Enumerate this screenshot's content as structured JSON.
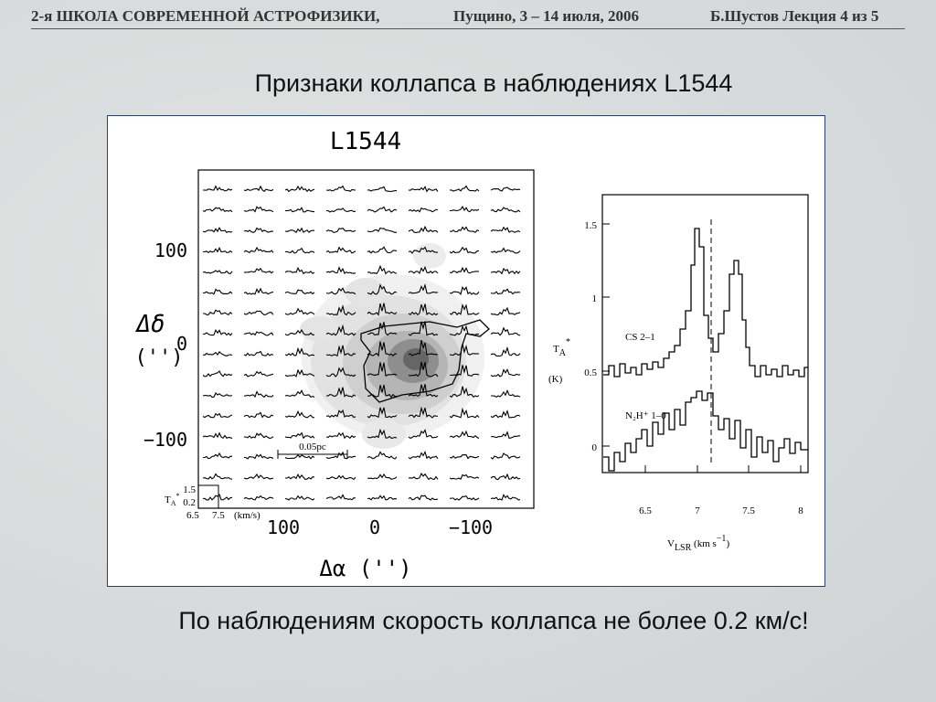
{
  "header": {
    "school": "2-я ШКОЛА СОВРЕМЕННОЙ АСТРОФИЗИКИ,",
    "place_date": "Пущино, 3 – 14 июля, 2006",
    "lecture": "Б.Шустов Лекция 4 из 5"
  },
  "title": "Признаки коллапса в наблюдениях L1544",
  "figure": {
    "map": {
      "title": "L1544",
      "y_label": "Δδ",
      "y_unit": "('')",
      "y_ticks": [
        "100",
        "0",
        "−100"
      ],
      "x_label": "Δα  ('')",
      "x_ticks": [
        "100",
        "0",
        "−100"
      ],
      "scale_bar": "0.05pc",
      "inset_y_label": "T",
      "inset_y_sub": "A",
      "inset_y_sup": "*",
      "inset_y_ticks": [
        "1.5",
        "0.2"
      ],
      "inset_x_ticks": [
        "6.5",
        "7.5"
      ],
      "inset_x_unit": "(km/s)"
    },
    "spectrum": {
      "y_ticks": [
        "1.5",
        "1",
        "0.5",
        "0"
      ],
      "x_ticks": [
        "6.5",
        "7",
        "7.5",
        "8"
      ],
      "y_label": "T",
      "y_sub": "A",
      "y_sup": "*",
      "y_unit": "(K)",
      "x_label": "V",
      "x_sub": "LSR",
      "x_unit": " (km s",
      "x_unit_sup": "−1",
      "x_unit_end": ")",
      "lines": [
        "CS 2–1",
        "N₂H⁺ 1–0"
      ]
    }
  },
  "caption": "По наблюдениям  скорость коллапса не более 0.2 км/с!"
}
